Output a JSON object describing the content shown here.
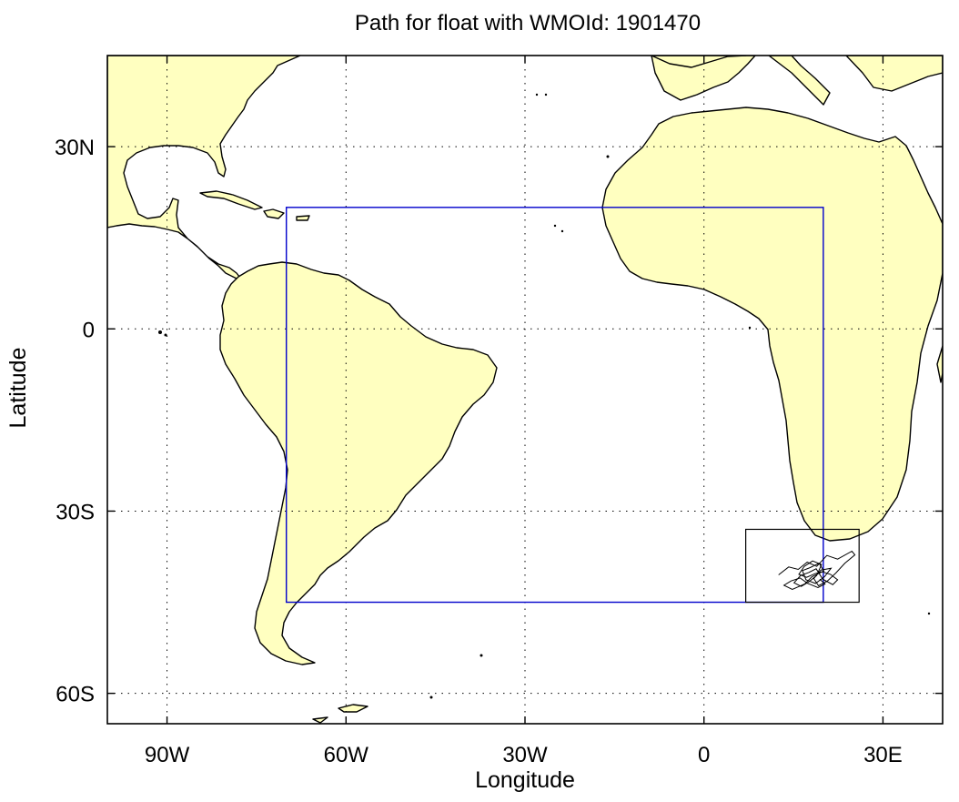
{
  "title": "Path for float with WMOId: 1901470",
  "xlabel": "Longitude",
  "ylabel": "Latitude",
  "map": {
    "lon_range": [
      -100,
      40
    ],
    "lat_range": [
      -65,
      45
    ],
    "x_ticks": [
      {
        "lon": -90,
        "label": "90W"
      },
      {
        "lon": -60,
        "label": "60W"
      },
      {
        "lon": -30,
        "label": "30W"
      },
      {
        "lon": 0,
        "label": "0"
      },
      {
        "lon": 30,
        "label": "30E"
      }
    ],
    "y_ticks": [
      {
        "lat": 30,
        "label": "30N"
      },
      {
        "lat": 0,
        "label": "0"
      },
      {
        "lat": -30,
        "label": "30S"
      },
      {
        "lat": -60,
        "label": "60S"
      }
    ],
    "grid": true,
    "land_color": "#ffffc0",
    "region_box": {
      "lon_min": -70,
      "lon_max": 20,
      "lat_min": -45,
      "lat_max": 20,
      "color": "#0000cc"
    },
    "float_box": {
      "lon_min": 7,
      "lon_max": 26,
      "lat_min": -45,
      "lat_max": -33,
      "color": "#000000"
    },
    "float_path": [
      [
        12.5,
        -40.5
      ],
      [
        14.2,
        -39.2
      ],
      [
        15.8,
        -39.6
      ],
      [
        17.3,
        -38.4
      ],
      [
        18.9,
        -39.1
      ],
      [
        20.6,
        -37.3
      ],
      [
        22.4,
        -37.9
      ],
      [
        24.8,
        -36.6
      ],
      [
        25.3,
        -37.2
      ],
      [
        23.6,
        -38.6
      ],
      [
        22.1,
        -40.2
      ],
      [
        20.7,
        -41.5
      ],
      [
        19.2,
        -42.3
      ],
      [
        18.4,
        -41.1
      ],
      [
        19.6,
        -39.7
      ],
      [
        21.3,
        -39.4
      ],
      [
        20.2,
        -40.8
      ],
      [
        18.7,
        -41.9
      ],
      [
        17.1,
        -41.3
      ],
      [
        16.5,
        -39.8
      ],
      [
        17.8,
        -39.3
      ],
      [
        19.3,
        -38.6
      ],
      [
        20.1,
        -39.9
      ],
      [
        18.6,
        -40.3
      ],
      [
        17.2,
        -40.9
      ],
      [
        15.9,
        -40.4
      ],
      [
        16.8,
        -39.1
      ],
      [
        18.2,
        -38.2
      ],
      [
        19.7,
        -38.8
      ],
      [
        18.9,
        -40.6
      ],
      [
        17.5,
        -41.7
      ],
      [
        16.3,
        -42.4
      ],
      [
        15.1,
        -41.8
      ],
      [
        16.2,
        -40.6
      ],
      [
        17.6,
        -40.1
      ],
      [
        18.8,
        -39.5
      ],
      [
        19.9,
        -41.2
      ],
      [
        21.6,
        -42.1
      ],
      [
        22.4,
        -41.3
      ],
      [
        21.2,
        -40.4
      ],
      [
        19.8,
        -40.0
      ],
      [
        18.1,
        -40.8
      ],
      [
        16.9,
        -42.0
      ],
      [
        14.8,
        -42.9
      ],
      [
        13.4,
        -42.2
      ],
      [
        14.6,
        -41.5
      ],
      [
        16.1,
        -41.0
      ],
      [
        17.4,
        -41.9
      ],
      [
        19.1,
        -42.6
      ],
      [
        20.3,
        -42.0
      ],
      [
        19.4,
        -41.2
      ]
    ],
    "float_start_marker": [
      12.5,
      -40.5
    ]
  }
}
